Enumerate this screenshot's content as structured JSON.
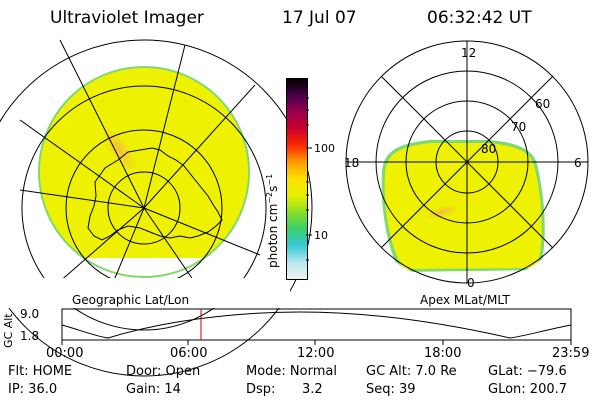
{
  "header": {
    "instrument": "Ultraviolet Imager",
    "date": "17 Jul 07",
    "time": "06:32:42 UT"
  },
  "colors": {
    "image_yellow": "#eef200",
    "image_edge": "#7fd870",
    "hotspot": "#f4c13a",
    "grid": "#000000",
    "timeline_marker": "#cc0000"
  },
  "panels": {
    "geographic_label": "Geographic Lat/Lon",
    "polar_label": "Apex MLat/MLT",
    "polar_mlt_labels": [
      "12",
      "18",
      "6",
      "0"
    ],
    "polar_mlat_labels": [
      "60",
      "70",
      "80"
    ]
  },
  "colorbar": {
    "unit_label": "photon cm",
    "unit_exp1": "−2",
    "unit_mid": "s",
    "unit_exp2": "−1",
    "ticks": [
      "100",
      "10"
    ],
    "stops": [
      "#f0f0f0",
      "#b8e8ee",
      "#38c8d8",
      "#39d070",
      "#8ade26",
      "#e6f000",
      "#ffe000",
      "#ff9d00",
      "#ff2a00",
      "#cc0028",
      "#9a0050",
      "#4a004a",
      "#000000"
    ]
  },
  "timeline": {
    "axis_label": "GC Alt",
    "y_ticks": [
      "9.0",
      "1.8"
    ],
    "x_ticks": [
      "00:00",
      "06:00",
      "12:00",
      "18:00",
      "23:59"
    ],
    "marker_time": "06:32"
  },
  "info": {
    "filter": "Flt: HOME",
    "ip": "IP: 36.0",
    "door": "Door: Open",
    "gain": "Gain: 14",
    "mode": "Mode: Normal",
    "dsp_label": "Dsp:",
    "dsp_value": "3.2",
    "gc_alt": "GC Alt: 7.0 Re",
    "seq": "Seq: 39",
    "glat": "GLat: −79.6",
    "glon": "GLon: 200.7"
  }
}
